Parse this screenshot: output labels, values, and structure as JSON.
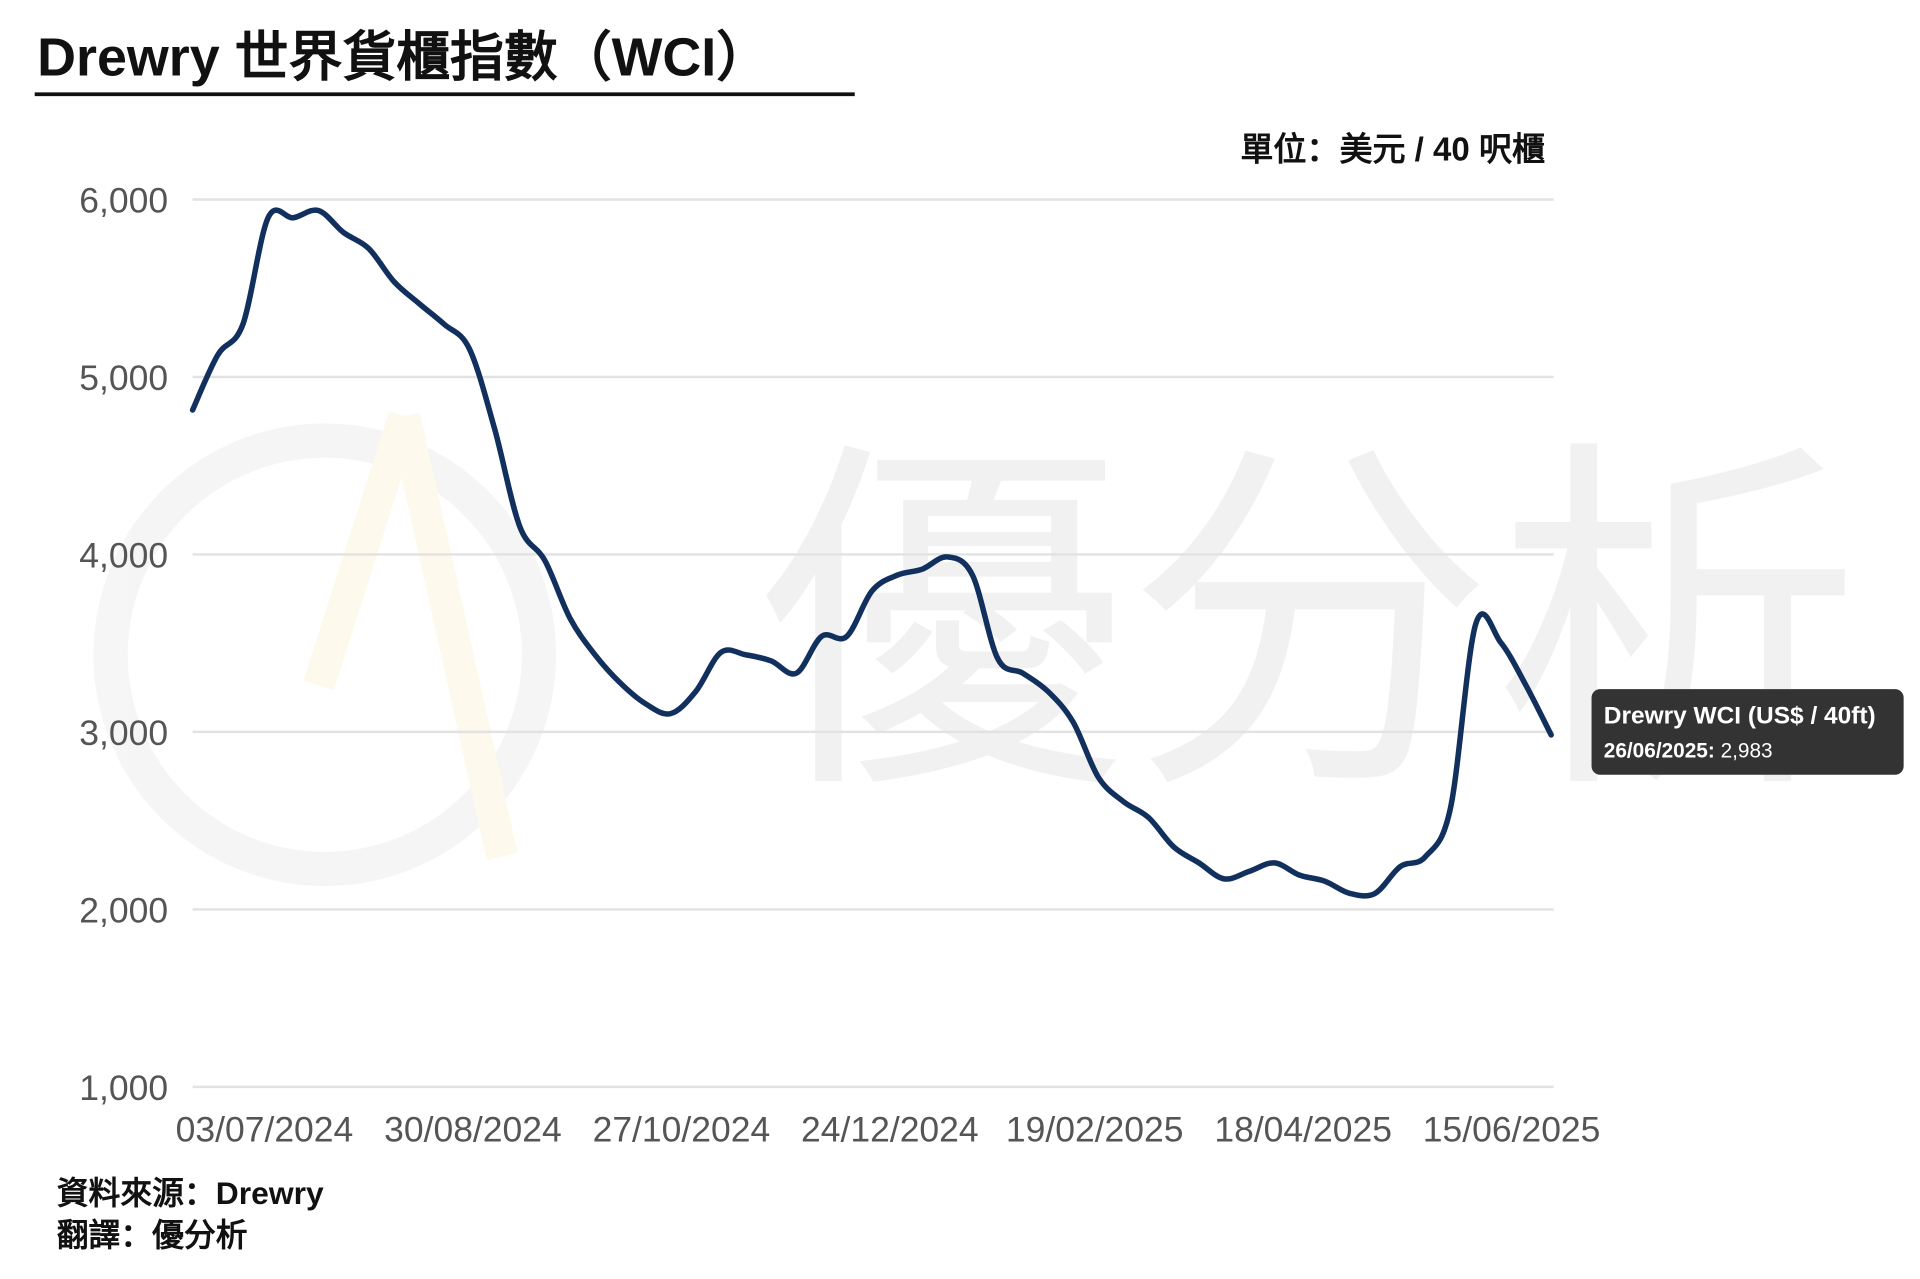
{
  "chart_data": {
    "type": "line",
    "title": "Drewry 世界貨櫃指數（WCI）",
    "unit_label": "單位：美元 / 40 呎櫃",
    "source": "資料來源：Drewry",
    "translation": "翻譯：優分析",
    "watermark": "優分析",
    "x": [
      "13/06/2024",
      "20/06/2024",
      "27/06/2024",
      "04/07/2024",
      "11/07/2024",
      "18/07/2024",
      "25/07/2024",
      "01/08/2024",
      "08/08/2024",
      "15/08/2024",
      "22/08/2024",
      "29/08/2024",
      "05/09/2024",
      "12/09/2024",
      "19/09/2024",
      "26/09/2024",
      "03/10/2024",
      "10/10/2024",
      "17/10/2024",
      "24/10/2024",
      "31/10/2024",
      "07/11/2024",
      "14/11/2024",
      "21/11/2024",
      "28/11/2024",
      "05/12/2024",
      "12/12/2024",
      "19/12/2024",
      "26/12/2024",
      "02/01/2025",
      "09/01/2025",
      "16/01/2025",
      "23/01/2025",
      "30/01/2025",
      "06/02/2025",
      "13/02/2025",
      "20/02/2025",
      "27/02/2025",
      "06/03/2025",
      "13/03/2025",
      "20/03/2025",
      "27/03/2025",
      "03/04/2025",
      "10/04/2025",
      "17/04/2025",
      "24/04/2025",
      "01/05/2025",
      "08/05/2025",
      "15/05/2025",
      "22/05/2025",
      "29/05/2025",
      "05/06/2025",
      "12/06/2025",
      "19/06/2025",
      "26/06/2025"
    ],
    "series": [
      {
        "name": "Drewry WCI (US$ / 40ft)",
        "color": "#12305e",
        "values": [
          4814,
          5124,
          5297,
          5897,
          5897,
          5938,
          5814,
          5724,
          5538,
          5414,
          5297,
          5159,
          4710,
          4159,
          3966,
          3641,
          3434,
          3276,
          3159,
          3103,
          3228,
          3448,
          3434,
          3400,
          3331,
          3538,
          3538,
          3793,
          3883,
          3917,
          3986,
          3883,
          3414,
          3331,
          3228,
          3055,
          2745,
          2607,
          2517,
          2352,
          2262,
          2172,
          2214,
          2262,
          2193,
          2159,
          2090,
          2090,
          2241,
          2297,
          2572,
          3607,
          3503,
          3262,
          2983
        ]
      }
    ],
    "tooltip": {
      "x_label": "26/06/2025:",
      "value_label": "2,983"
    },
    "xlim": [
      "13/06/2024",
      "26/06/2025"
    ],
    "xticks": [
      "03/07/2024",
      "30/08/2024",
      "27/10/2024",
      "24/12/2024",
      "19/02/2025",
      "18/04/2025",
      "15/06/2025"
    ],
    "ylim": [
      1000,
      6000
    ],
    "yticks": [
      {
        "value": 1000,
        "label": "1,000"
      },
      {
        "value": 2000,
        "label": "2,000"
      },
      {
        "value": 3000,
        "label": "3,000"
      },
      {
        "value": 4000,
        "label": "4,000"
      },
      {
        "value": 5000,
        "label": "5,000"
      },
      {
        "value": 6000,
        "label": "6,000"
      }
    ],
    "grid": true
  }
}
